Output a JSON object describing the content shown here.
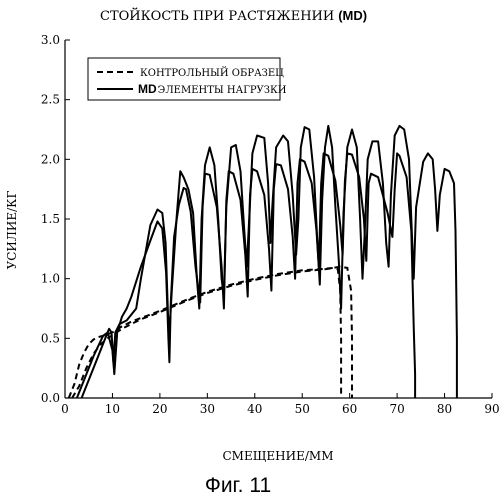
{
  "chart_data": {
    "type": "line",
    "title": "СТОЙКОСТЬ ПРИ РАСТЯЖЕНИИ",
    "title_suffix": "(MD)",
    "xlabel": "СМЕЩЕНИЕ/ММ",
    "ylabel": "УСИЛИЕ/КГ",
    "caption": "Фиг. 11",
    "xlim": [
      0,
      90
    ],
    "ylim": [
      0,
      3.0
    ],
    "x_ticks": [
      "0",
      "10",
      "20",
      "30",
      "40",
      "50",
      "60",
      "70",
      "80",
      "90"
    ],
    "y_ticks": [
      "0.0",
      "0.5",
      "1.0",
      "1.5",
      "2.0",
      "2.5",
      "3.0"
    ],
    "grid": false,
    "legend_position": "top-left",
    "legend": [
      {
        "style": "dashed",
        "label": "КОНТРОЛЬНЫЙ ОБРАЗЕЦ"
      },
      {
        "style": "solid",
        "prefix": "MD",
        "label": "ЭЛЕМЕНТЫ НАГРУЗКИ"
      }
    ],
    "series": [
      {
        "style": "dashed",
        "x": [
          0.8,
          2.0,
          3.0,
          4.0,
          5.0,
          6.0,
          7.0,
          8.0,
          10.0,
          12.0,
          14.0,
          16.0,
          18.0,
          20.0,
          23.0,
          26.0,
          30.0,
          35.0,
          40.0,
          45.0,
          50.0,
          54.0,
          56.5,
          57.5,
          58.0,
          58.2,
          58.2
        ],
        "y": [
          0.0,
          0.12,
          0.28,
          0.38,
          0.45,
          0.49,
          0.51,
          0.52,
          0.55,
          0.6,
          0.64,
          0.67,
          0.7,
          0.73,
          0.78,
          0.83,
          0.89,
          0.95,
          1.0,
          1.04,
          1.07,
          1.08,
          1.09,
          1.08,
          0.9,
          0.5,
          0.0
        ]
      },
      {
        "style": "dashed",
        "x": [
          1.5,
          3.0,
          4.5,
          6.0,
          7.5,
          9.0,
          10.5,
          12.0,
          14.0,
          16.0,
          18.0,
          20.0,
          23.0,
          26.0,
          30.0,
          35.0,
          40.0,
          45.0,
          50.0,
          55.0,
          58.0,
          59.5,
          60.3,
          60.5,
          60.5
        ],
        "y": [
          0.0,
          0.1,
          0.25,
          0.37,
          0.45,
          0.5,
          0.54,
          0.58,
          0.62,
          0.66,
          0.69,
          0.72,
          0.77,
          0.82,
          0.88,
          0.94,
          0.99,
          1.03,
          1.06,
          1.08,
          1.1,
          1.09,
          0.9,
          0.5,
          0.0
        ]
      },
      {
        "style": "solid",
        "x": [
          2.5,
          4.0,
          6.0,
          8.0,
          9.0,
          10.0,
          10.4,
          11.0,
          12.0,
          13.0,
          14.0,
          16.0,
          18.0,
          19.5,
          20.5,
          21.3,
          21.8,
          22.0,
          22.3,
          23.0,
          24.0,
          25.0,
          25.5,
          26.5,
          27.5,
          28.5,
          29.0,
          29.5,
          30.5,
          32.0,
          33.0,
          33.5,
          34.0,
          34.5,
          35.5,
          37.0,
          38.0,
          38.5,
          39.0,
          39.5,
          40.5,
          42.0,
          43.0,
          43.5,
          44.0,
          44.5,
          45.5,
          47.0,
          48.0,
          48.5,
          49.0,
          49.5,
          50.5,
          52.0,
          53.0,
          53.5,
          54.0,
          54.5,
          55.5,
          57.0,
          58.0,
          58.5,
          59.0,
          59.5,
          60.5,
          62.0,
          63.0,
          63.5,
          64.0,
          64.5,
          66.0,
          68.0,
          69.0,
          69.5,
          70.0,
          70.5,
          72.0,
          73.0,
          73.5,
          73.8,
          73.8
        ],
        "y": [
          0.0,
          0.15,
          0.35,
          0.52,
          0.55,
          0.4,
          0.2,
          0.55,
          0.68,
          0.75,
          0.85,
          1.1,
          1.32,
          1.48,
          1.42,
          1.05,
          0.5,
          0.3,
          0.8,
          1.35,
          1.62,
          1.76,
          1.75,
          1.56,
          1.1,
          0.8,
          1.6,
          1.88,
          1.87,
          1.6,
          1.1,
          0.75,
          1.65,
          1.9,
          1.88,
          1.66,
          1.2,
          0.85,
          1.7,
          1.92,
          1.9,
          1.7,
          1.25,
          0.9,
          1.75,
          1.96,
          1.95,
          1.75,
          1.35,
          1.0,
          1.8,
          2.0,
          1.98,
          1.8,
          1.4,
          1.1,
          1.8,
          2.05,
          2.03,
          1.82,
          1.45,
          1.2,
          1.82,
          2.05,
          2.04,
          1.85,
          1.5,
          1.15,
          1.8,
          1.88,
          1.85,
          1.55,
          1.35,
          1.75,
          2.05,
          2.03,
          1.85,
          1.4,
          0.6,
          0.2,
          0.0
        ]
      },
      {
        "style": "solid",
        "x": [
          3.5,
          5.0,
          7.0,
          8.5,
          9.3,
          9.8,
          10.2,
          10.6,
          11.5,
          13.0,
          14.0,
          15.0,
          16.0,
          18.0,
          19.5,
          20.5,
          21.2,
          21.7,
          22.0,
          22.5,
          23.5,
          24.3,
          25.0,
          26.0,
          27.0,
          27.8,
          28.3,
          28.8,
          29.5,
          30.5,
          31.5,
          32.3,
          33.0,
          33.5,
          34.0,
          35.0,
          36.0,
          37.0,
          37.8,
          38.3,
          38.7,
          39.5,
          40.5,
          42.0,
          42.8,
          43.3,
          43.7,
          44.5,
          46.0,
          47.0,
          48.0,
          48.7,
          49.2,
          49.7,
          50.5,
          51.5,
          52.5,
          53.2,
          53.7,
          54.2,
          54.8,
          55.5,
          56.3,
          57.0,
          57.7,
          58.2,
          58.7,
          59.5,
          60.5,
          61.5,
          62.2,
          62.7,
          63.2,
          63.8,
          64.8,
          66.0,
          67.0,
          67.7,
          68.2,
          68.7,
          69.5,
          70.5,
          71.5,
          72.5,
          73.0,
          73.5,
          74.0,
          75.5,
          76.5,
          77.5,
          78.0,
          78.5,
          79.0,
          80.0,
          81.0,
          82.0,
          82.3,
          82.6,
          82.6
        ],
        "y": [
          0.0,
          0.15,
          0.35,
          0.5,
          0.58,
          0.55,
          0.3,
          0.55,
          0.62,
          0.65,
          0.7,
          0.75,
          1.0,
          1.45,
          1.58,
          1.55,
          1.3,
          0.7,
          0.55,
          0.9,
          1.5,
          1.9,
          1.85,
          1.75,
          1.55,
          1.0,
          0.75,
          1.5,
          1.95,
          2.1,
          1.95,
          1.5,
          1.0,
          0.85,
          1.6,
          2.1,
          2.12,
          1.9,
          1.4,
          1.1,
          1.4,
          2.05,
          2.2,
          2.18,
          1.8,
          1.3,
          1.6,
          2.1,
          2.2,
          2.15,
          1.7,
          1.2,
          1.5,
          2.1,
          2.27,
          2.25,
          1.85,
          1.3,
          0.95,
          1.65,
          2.1,
          2.28,
          2.1,
          1.6,
          1.15,
          0.75,
          1.55,
          2.1,
          2.25,
          2.1,
          1.5,
          1.0,
          1.4,
          2.0,
          2.15,
          2.15,
          1.8,
          1.3,
          1.1,
          1.7,
          2.2,
          2.28,
          2.25,
          2.0,
          1.5,
          1.0,
          1.6,
          1.98,
          2.05,
          2.0,
          1.75,
          1.4,
          1.7,
          1.92,
          1.9,
          1.8,
          1.4,
          0.5,
          0.0
        ]
      }
    ]
  }
}
